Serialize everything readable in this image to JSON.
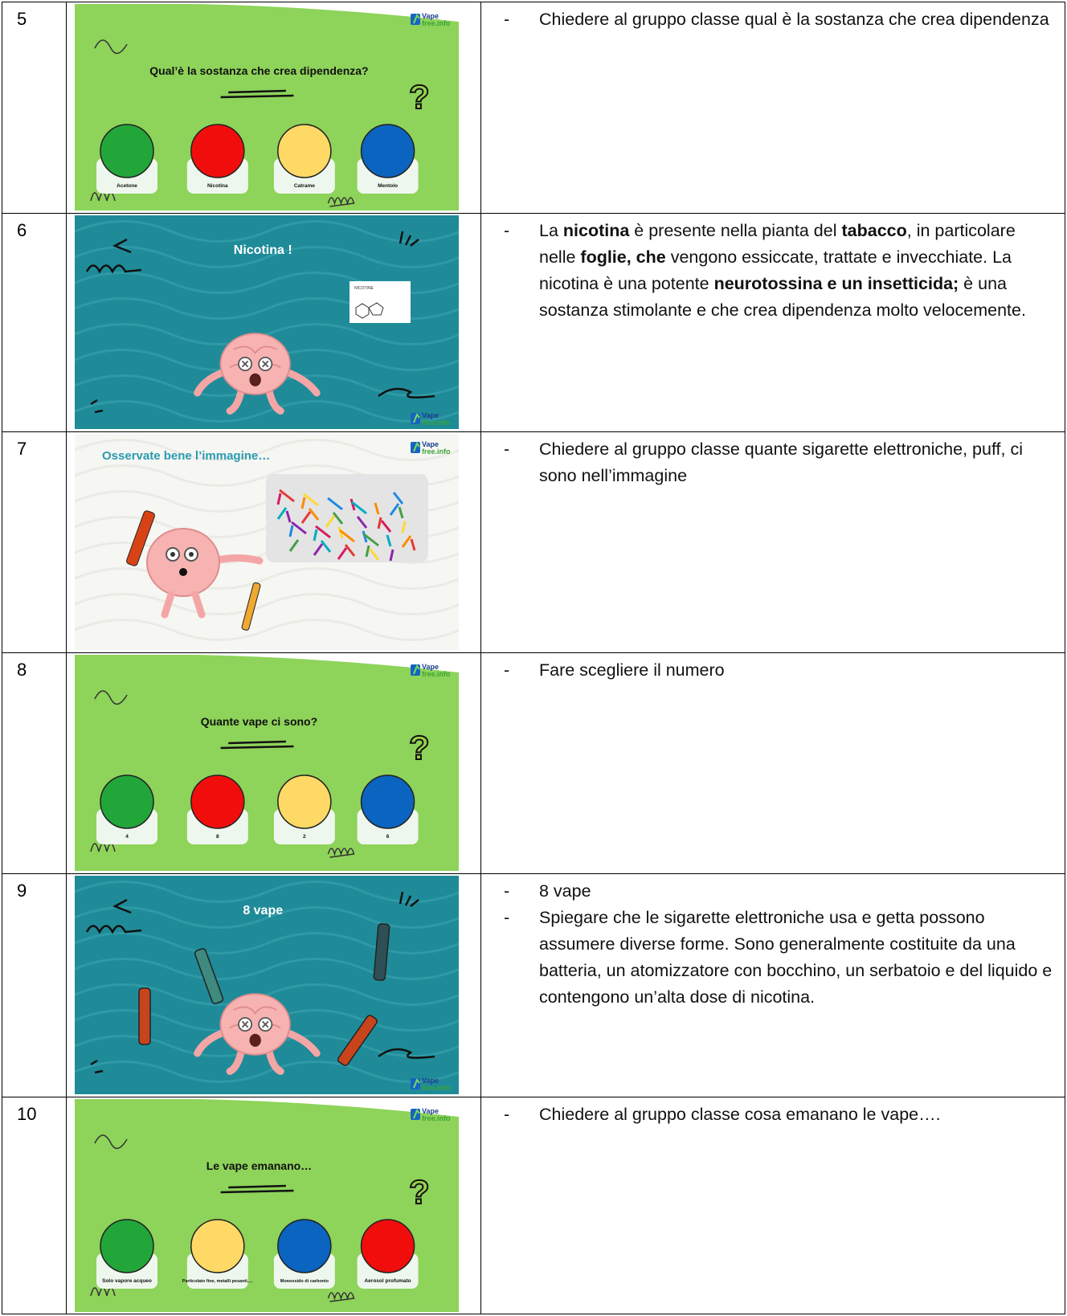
{
  "logo": {
    "line1": "Vape",
    "line2": "free.info"
  },
  "rows": [
    {
      "number": "5",
      "slide": {
        "kind": "quiz",
        "title": "Qual’è la sostanza che crea dipendenza?",
        "options": [
          {
            "label": "Acetone",
            "color": "#22a63a"
          },
          {
            "label": "Nicotina",
            "color": "#f20d0d"
          },
          {
            "label": "Catrame",
            "color": "#ffd966"
          },
          {
            "label": "Mentolo",
            "color": "#0b64c0"
          }
        ]
      },
      "notes": [
        [
          {
            "text": "Chiedere al gruppo classe qual è la sostanza che crea dipendenza"
          }
        ]
      ]
    },
    {
      "number": "6",
      "slide": {
        "kind": "reveal",
        "title": "Nicotina !",
        "image_label": "NICOTINE"
      },
      "notes": [
        [
          {
            "text": "La "
          },
          {
            "text": "nicotina",
            "bold": true
          },
          {
            "text": " è presente nella pianta del "
          },
          {
            "text": "tabacco",
            "bold": true
          },
          {
            "text": ", in particolare nelle "
          },
          {
            "text": "foglie, che",
            "bold": true
          },
          {
            "text": " vengono essiccate, trattate e invecchiate. La nicotina è una potente "
          },
          {
            "text": "neurotossina e un insetticida;",
            "bold": true
          },
          {
            "text": " è una sostanza stimolante e che crea dipendenza molto velocemente."
          }
        ]
      ]
    },
    {
      "number": "7",
      "slide": {
        "kind": "image",
        "title": "Osservate bene l’immagine…"
      },
      "notes": [
        [
          {
            "text": "Chiedere al gruppo classe quante sigarette elettroniche, puff, ci sono nell’immagine"
          }
        ]
      ]
    },
    {
      "number": "8",
      "slide": {
        "kind": "quiz",
        "title": "Quante vape ci sono?",
        "options": [
          {
            "label": "4",
            "color": "#22a63a"
          },
          {
            "label": "8",
            "color": "#f20d0d"
          },
          {
            "label": "2",
            "color": "#ffd966"
          },
          {
            "label": "6",
            "color": "#0b64c0"
          }
        ]
      },
      "notes": [
        [
          {
            "text": "Fare scegliere il numero"
          }
        ]
      ]
    },
    {
      "number": "9",
      "slide": {
        "kind": "reveal",
        "title": "8 vape",
        "vapes": true
      },
      "notes": [
        [
          {
            "text": "8 vape"
          }
        ],
        [
          {
            "text": "Spiegare che le sigarette elettroniche usa e getta possono assumere diverse forme. Sono generalmente costituite da una batteria, un atomizzatore con bocchino, un serbatoio e del liquido e contengono un’alta dose di nicotina."
          }
        ]
      ]
    },
    {
      "number": "10",
      "slide": {
        "kind": "quiz",
        "title": "Le vape emanano…",
        "options": [
          {
            "label": "Solo vapore acqueo",
            "color": "#22a63a"
          },
          {
            "label": "Particolato fine, metalli pesanti,…",
            "color": "#ffd966"
          },
          {
            "label": "Monossido di carbonio",
            "color": "#0b64c0"
          },
          {
            "label": "Aerosol profumato",
            "color": "#f20d0d"
          }
        ]
      },
      "notes": [
        [
          {
            "text": "Chiedere al gruppo classe cosa emanano le vape…."
          }
        ]
      ]
    }
  ]
}
